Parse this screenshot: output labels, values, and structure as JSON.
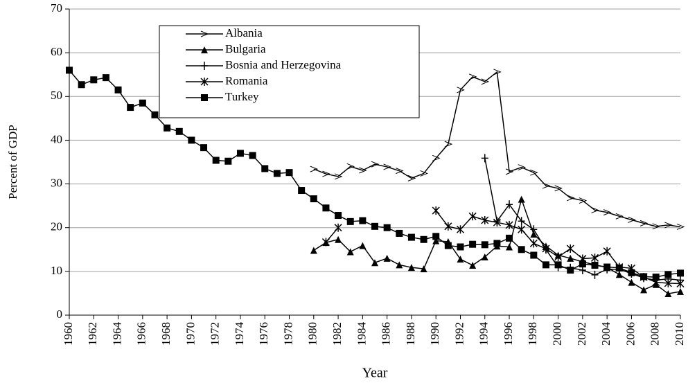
{
  "chart_data": {
    "type": "line",
    "y_label": "Percent of GDP",
    "x_label": "Year",
    "x": [
      1960,
      1961,
      1962,
      1963,
      1964,
      1965,
      1966,
      1967,
      1968,
      1969,
      1970,
      1971,
      1972,
      1973,
      1974,
      1975,
      1976,
      1977,
      1978,
      1979,
      1980,
      1981,
      1982,
      1983,
      1984,
      1985,
      1986,
      1987,
      1988,
      1989,
      1990,
      1991,
      1992,
      1993,
      1994,
      1995,
      1996,
      1997,
      1998,
      1999,
      2000,
      2001,
      2002,
      2003,
      2004,
      2005,
      2006,
      2007,
      2008,
      2009,
      2010
    ],
    "xlim": [
      1960,
      2010
    ],
    "xticks": [
      1960,
      1962,
      1964,
      1966,
      1968,
      1970,
      1972,
      1974,
      1976,
      1978,
      1980,
      1982,
      1984,
      1986,
      1988,
      1990,
      1992,
      1994,
      1996,
      1998,
      2000,
      2002,
      2004,
      2006,
      2008,
      2010
    ],
    "ylim": [
      0,
      70
    ],
    "yticks": [
      0,
      10,
      20,
      30,
      40,
      50,
      60,
      70
    ],
    "grid": true,
    "legend": "upper-left",
    "series": [
      {
        "name": "Albania",
        "color": "#000000",
        "marker": "open-triangle",
        "values": [
          null,
          null,
          null,
          null,
          null,
          null,
          null,
          null,
          null,
          null,
          null,
          null,
          null,
          null,
          null,
          null,
          null,
          null,
          null,
          null,
          33.4,
          32.3,
          31.7,
          34,
          33.1,
          34.5,
          33.9,
          33,
          31.3,
          32.4,
          35.9,
          39.1,
          51.5,
          54.5,
          53.4,
          55.6,
          32.8,
          33.8,
          32.6,
          29.6,
          29,
          26.8,
          26.2,
          24,
          23.5,
          22.6,
          21.8,
          21,
          20.3,
          20.6,
          20.2
        ]
      },
      {
        "name": "Bulgaria",
        "color": "#000000",
        "marker": "triangle",
        "values": [
          null,
          null,
          null,
          null,
          null,
          null,
          null,
          null,
          null,
          null,
          null,
          null,
          null,
          null,
          null,
          null,
          null,
          null,
          null,
          null,
          14.8,
          16.6,
          17.3,
          14.5,
          15.9,
          12,
          13,
          11.5,
          10.9,
          10.6,
          17,
          16.8,
          12.8,
          11.4,
          13.3,
          15.8,
          15.6,
          26.5,
          18.5,
          15.8,
          13.7,
          13,
          12.2,
          11.5,
          10.9,
          9.3,
          7.5,
          5.8,
          7,
          4.9,
          5.4
        ]
      },
      {
        "name": "Bosnia and Herzegovina",
        "color": "#000000",
        "marker": "plus",
        "values": [
          null,
          null,
          null,
          null,
          null,
          null,
          null,
          null,
          null,
          null,
          null,
          null,
          null,
          null,
          null,
          null,
          null,
          null,
          null,
          null,
          null,
          null,
          null,
          null,
          null,
          null,
          null,
          null,
          null,
          null,
          null,
          null,
          null,
          null,
          35.9,
          21.5,
          25.3,
          21.5,
          19.6,
          15,
          11,
          10.8,
          10.3,
          9.2,
          10.5,
          10.5,
          9.5,
          8.5,
          8,
          8.3,
          8
        ]
      },
      {
        "name": "Romania",
        "color": "#000000",
        "marker": "star",
        "values": [
          null,
          null,
          null,
          null,
          null,
          null,
          null,
          null,
          null,
          null,
          null,
          null,
          null,
          null,
          null,
          null,
          null,
          null,
          null,
          null,
          null,
          16.7,
          20,
          null,
          null,
          null,
          null,
          null,
          null,
          null,
          23.9,
          20.3,
          19.6,
          22.6,
          21.7,
          21.2,
          20.6,
          19.6,
          16.4,
          15.2,
          13.3,
          15.2,
          12.9,
          13.1,
          14.6,
          11,
          10.7,
          8.7,
          7.5,
          7.3,
          7.2
        ]
      },
      {
        "name": "Turkey",
        "color": "#000000",
        "marker": "square",
        "values": [
          56,
          52.7,
          53.8,
          54.3,
          51.5,
          47.5,
          48.5,
          45.8,
          42.8,
          42,
          40,
          38.3,
          35.4,
          35.2,
          37,
          36.5,
          33.5,
          32.4,
          32.6,
          28.5,
          26.6,
          24.5,
          22.8,
          21.4,
          21.6,
          20.3,
          20,
          18.7,
          17.8,
          17.3,
          18,
          15.9,
          15.6,
          16.2,
          16.1,
          16.4,
          17.6,
          15,
          13.7,
          11.5,
          11.5,
          10.3,
          11.7,
          11.4,
          11,
          10.8,
          9.7,
          8.8,
          8.7,
          9.3,
          9.6
        ]
      }
    ]
  }
}
